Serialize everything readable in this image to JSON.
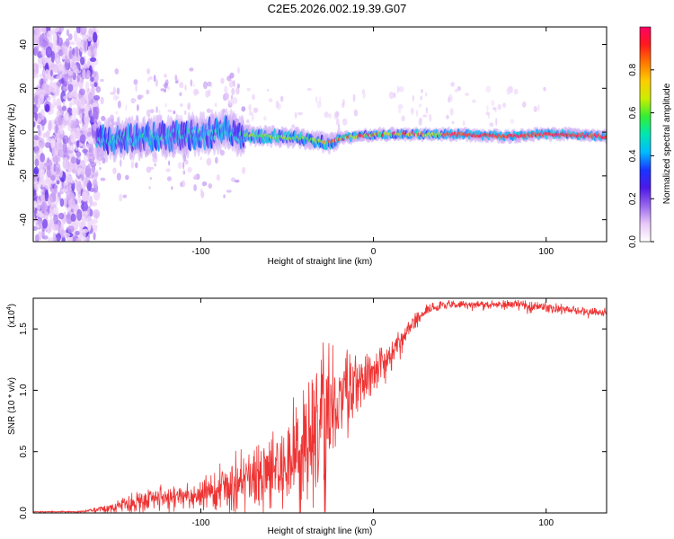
{
  "title": "C2E5.2026.002.19.39.G07",
  "chart_data": [
    {
      "type": "heatmap",
      "name": "spectrogram",
      "xlabel": "Height of straight line (km)",
      "ylabel": "Frequency (Hz)",
      "xlim": [
        -197,
        135
      ],
      "ylim": [
        -50,
        48
      ],
      "xticks": [
        -100,
        0,
        100
      ],
      "xtick_labels": [
        "-100",
        "0",
        "100"
      ],
      "yticks": [
        -40,
        -20,
        0,
        20,
        40
      ],
      "ytick_labels": [
        "-40",
        "-20",
        "0",
        "20",
        "40"
      ],
      "ridge": {
        "x": [
          -160,
          -140,
          -120,
          -100,
          -85,
          -80,
          -60,
          -40,
          -25,
          -20,
          -10,
          0,
          20,
          50,
          80,
          95,
          110,
          135
        ],
        "frequency": [
          -4,
          -3,
          -2,
          -1,
          1,
          -1,
          -2,
          -3,
          -5,
          -3,
          -2,
          -1,
          -1,
          -1,
          -2,
          -1,
          -1,
          -2
        ]
      },
      "noise_region_x": [
        -197,
        -160
      ],
      "colorbar": {
        "label": "Normalized spectral amplitude",
        "range": [
          0,
          1
        ],
        "ticks": [
          0.0,
          0.2,
          0.4,
          0.6,
          0.8
        ],
        "tick_labels": [
          "0.0",
          "0.2",
          "0.4",
          "0.6",
          "0.8"
        ],
        "colors": [
          "#ffffff",
          "#e8c8f8",
          "#9966ee",
          "#4d19e6",
          "#1a33ff",
          "#00bbff",
          "#00e6b3",
          "#33ee33",
          "#ccee00",
          "#ffcc00",
          "#ff7700",
          "#ff1a1a",
          "#ff0066"
        ]
      }
    },
    {
      "type": "line",
      "name": "snr",
      "xlabel": "Height of straight line (km)",
      "ylabel": "SNR (10 * v/v)",
      "y_multiplier": "(x10",
      "y_multiplier_exp": "4",
      "xlim": [
        -197,
        135
      ],
      "ylim": [
        0,
        1.75
      ],
      "xticks": [
        -100,
        0,
        100
      ],
      "xtick_labels": [
        "-100",
        "0",
        "100"
      ],
      "yticks": [
        0.0,
        0.5,
        1.0,
        1.5
      ],
      "ytick_labels": [
        "0.0",
        "0.5",
        "1.0",
        "1.5"
      ],
      "color": "#ee3333",
      "series": [
        {
          "name": "SNR",
          "x": [
            -197,
            -170,
            -160,
            -150,
            -140,
            -130,
            -120,
            -110,
            -100,
            -90,
            -80,
            -70,
            -60,
            -50,
            -40,
            -35,
            -30,
            -20,
            -10,
            0,
            10,
            20,
            30,
            40,
            60,
            80,
            90,
            100,
            110,
            120,
            135
          ],
          "y": [
            0.01,
            0.01,
            0.03,
            0.05,
            0.08,
            0.12,
            0.14,
            0.13,
            0.15,
            0.2,
            0.25,
            0.32,
            0.38,
            0.45,
            0.55,
            0.7,
            0.8,
            0.95,
            1.05,
            1.15,
            1.3,
            1.5,
            1.65,
            1.7,
            1.7,
            1.7,
            1.69,
            1.68,
            1.66,
            1.65,
            1.63
          ],
          "amplitude": [
            0.003,
            0.005,
            0.02,
            0.04,
            0.08,
            0.09,
            0.09,
            0.08,
            0.1,
            0.15,
            0.2,
            0.25,
            0.3,
            0.33,
            0.45,
            0.55,
            0.55,
            0.35,
            0.22,
            0.15,
            0.1,
            0.07,
            0.05,
            0.03,
            0.03,
            0.03,
            0.04,
            0.04,
            0.03,
            0.03,
            0.03
          ]
        }
      ]
    }
  ]
}
